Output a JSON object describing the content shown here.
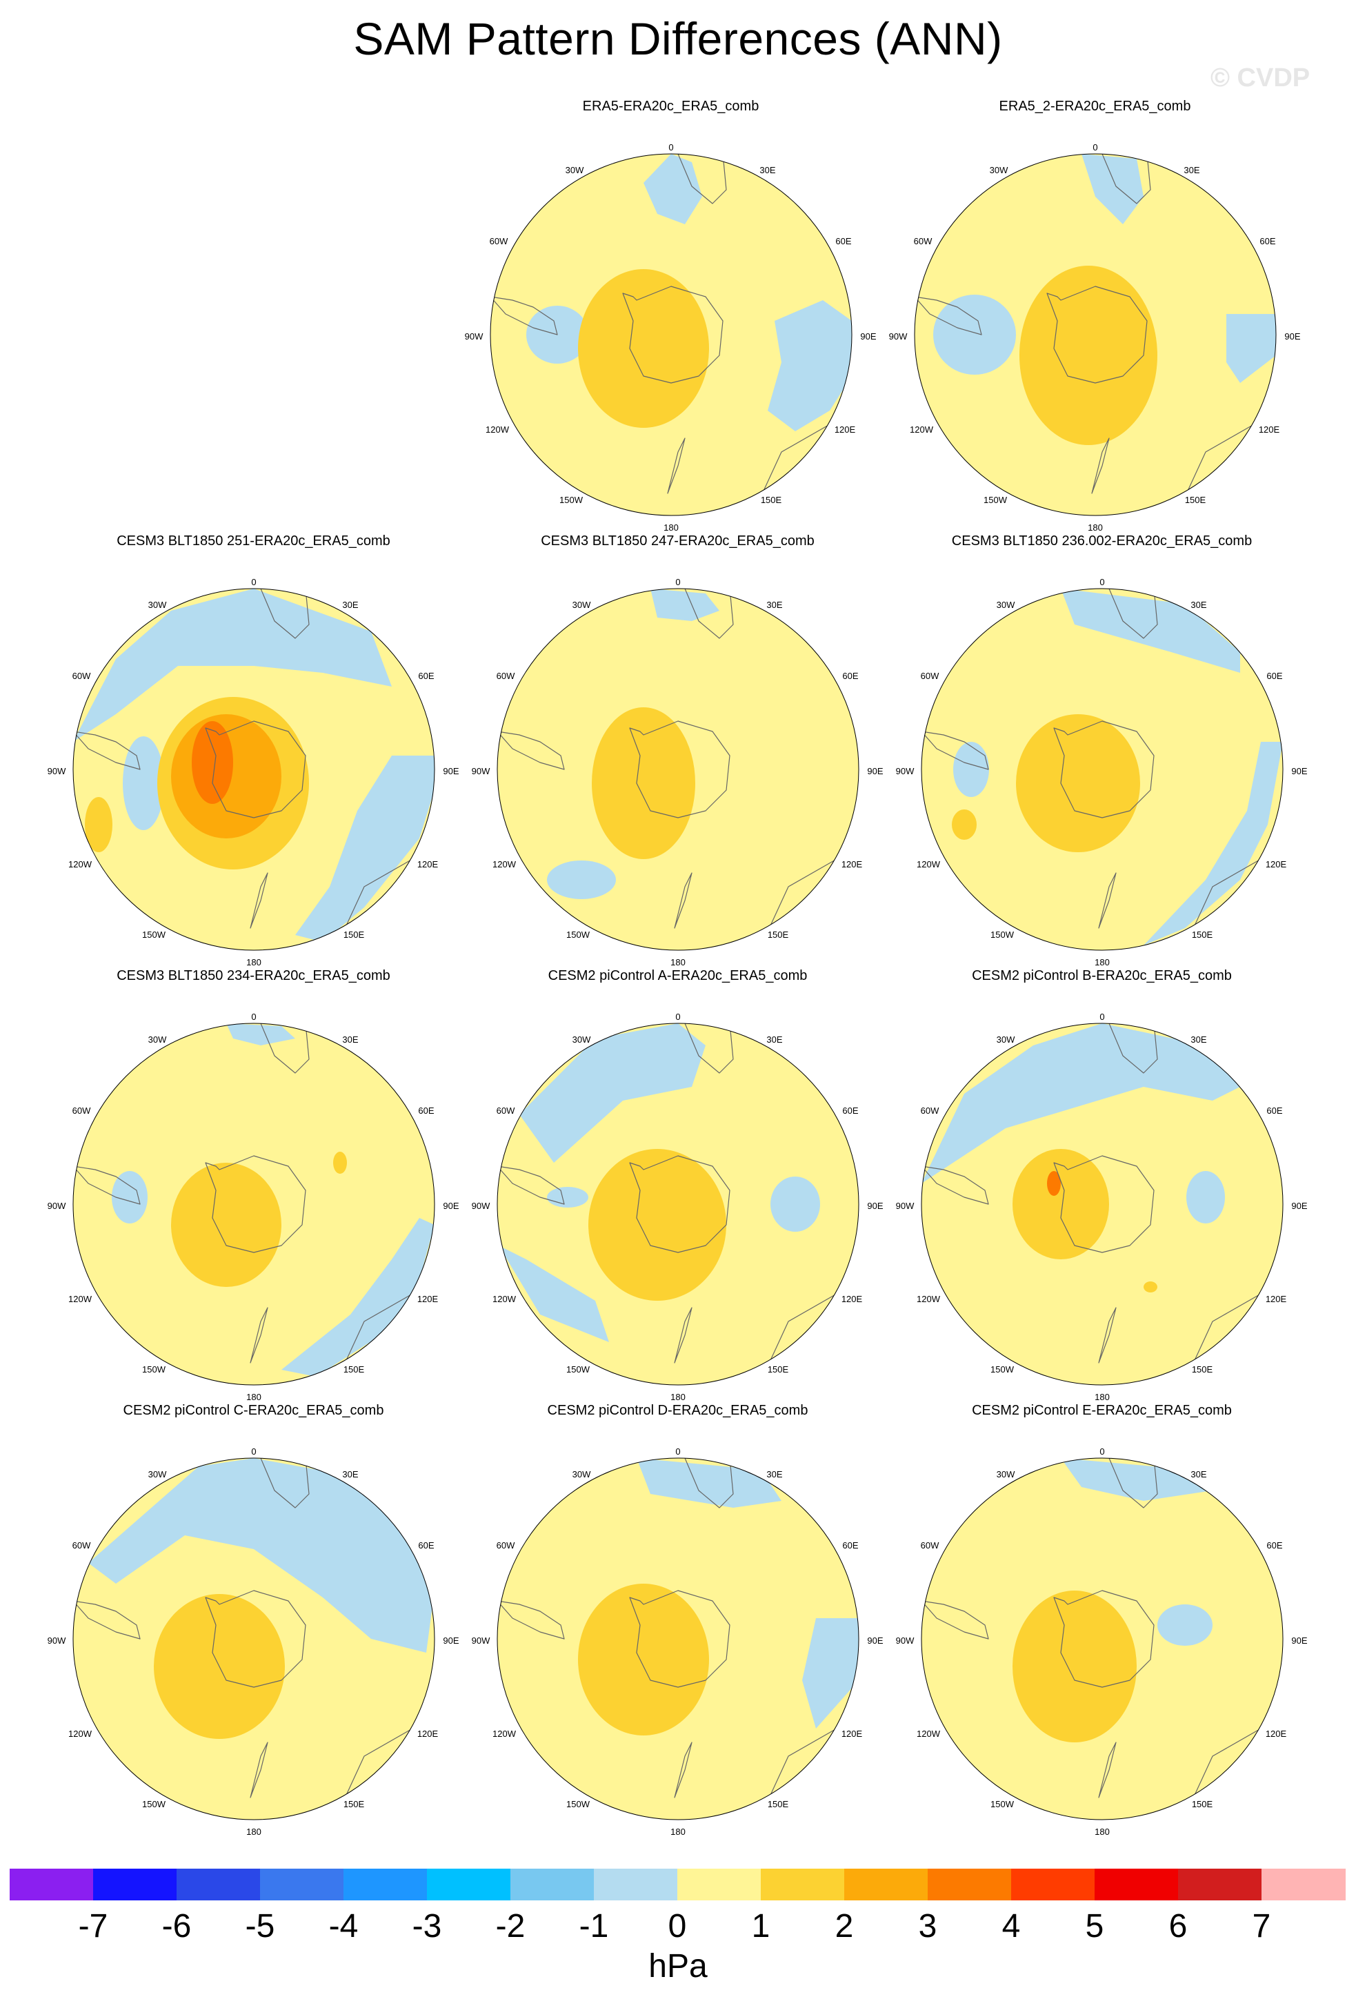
{
  "title": "SAM Pattern Differences (ANN)",
  "watermark": "© CVDP",
  "longitude_labels": {
    "lon0": "0",
    "lon30e": "30E",
    "lon60e": "60E",
    "lon90e": "90E",
    "lon120e": "120E",
    "lon150e": "150E",
    "lon180": "180",
    "lon150w": "150W",
    "lon120w": "120W",
    "lon90w": "90W",
    "lon60w": "60W",
    "lon30w": "30W"
  },
  "panels": [
    {
      "title": "ERA5-ERA20c_ERA5_comb",
      "variant": 0
    },
    {
      "title": "ERA5_2-ERA20c_ERA5_comb",
      "variant": 1
    },
    {
      "title": "CESM3 BLT1850 251-ERA20c_ERA5_comb",
      "variant": 2
    },
    {
      "title": "CESM3 BLT1850 247-ERA20c_ERA5_comb",
      "variant": 3
    },
    {
      "title": "CESM3 BLT1850 236.002-ERA20c_ERA5_comb",
      "variant": 4
    },
    {
      "title": "CESM3 BLT1850 234-ERA20c_ERA5_comb",
      "variant": 5
    },
    {
      "title": "CESM2 piControl A-ERA20c_ERA5_comb",
      "variant": 6
    },
    {
      "title": "CESM2 piControl B-ERA20c_ERA5_comb",
      "variant": 7
    },
    {
      "title": "CESM2 piControl C-ERA20c_ERA5_comb",
      "variant": 8
    },
    {
      "title": "CESM2 piControl D-ERA20c_ERA5_comb",
      "variant": 9
    },
    {
      "title": "CESM2 piControl E-ERA20c_ERA5_comb",
      "variant": 10
    }
  ],
  "colorbar": {
    "units": "hPa",
    "ticks": [
      "-7",
      "-6",
      "-5",
      "-4",
      "-3",
      "-2",
      "-1",
      "0",
      "1",
      "2",
      "3",
      "4",
      "5",
      "6",
      "7"
    ],
    "colors": [
      "#8b1ff0",
      "#1414ff",
      "#2a48e8",
      "#3a78ee",
      "#1e96ff",
      "#00c0ff",
      "#78c8f0",
      "#b4dcf0",
      "#fff596",
      "#fcd232",
      "#fcaa0a",
      "#fc7a00",
      "#ff3c00",
      "#f00000",
      "#d21e1e",
      "#ffb4b4"
    ]
  },
  "colors": {
    "fill_neutral": "#fff596",
    "fill_negative_weak": "#b4dcf0",
    "fill_positive_1": "#fcd232",
    "fill_positive_2": "#fcaa0a",
    "fill_positive_3": "#fc7a00",
    "coastline": "#666666"
  }
}
